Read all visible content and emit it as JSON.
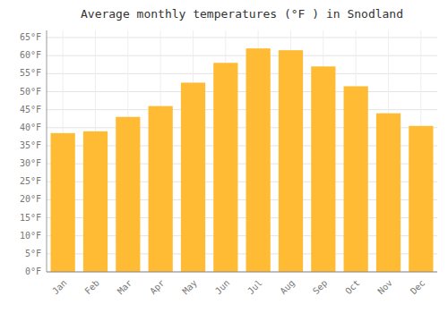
{
  "chart_data": {
    "type": "bar",
    "title": "Average monthly temperatures (°F ) in Snodland",
    "categories": [
      "Jan",
      "Feb",
      "Mar",
      "Apr",
      "May",
      "Jun",
      "Jul",
      "Aug",
      "Sep",
      "Oct",
      "Nov",
      "Dec"
    ],
    "values": [
      38.5,
      39.0,
      43.0,
      46.0,
      52.5,
      58.0,
      62.0,
      61.5,
      57.0,
      51.5,
      44.0,
      40.5
    ],
    "color": "#FFBB33",
    "ylim": [
      0,
      67
    ],
    "yticks": [
      {
        "value": 0,
        "label": "0°F"
      },
      {
        "value": 5,
        "label": "5°F"
      },
      {
        "value": 10,
        "label": "10°F"
      },
      {
        "value": 15,
        "label": "15°F"
      },
      {
        "value": 20,
        "label": "20°F"
      },
      {
        "value": 25,
        "label": "25°F"
      },
      {
        "value": 30,
        "label": "30°F"
      },
      {
        "value": 35,
        "label": "35°F"
      },
      {
        "value": 40,
        "label": "40°F"
      },
      {
        "value": 45,
        "label": "45°F"
      },
      {
        "value": 50,
        "label": "50°F"
      },
      {
        "value": 55,
        "label": "55°F"
      },
      {
        "value": 60,
        "label": "60°F"
      },
      {
        "value": 65,
        "label": "65°F"
      }
    ],
    "grid": true
  }
}
